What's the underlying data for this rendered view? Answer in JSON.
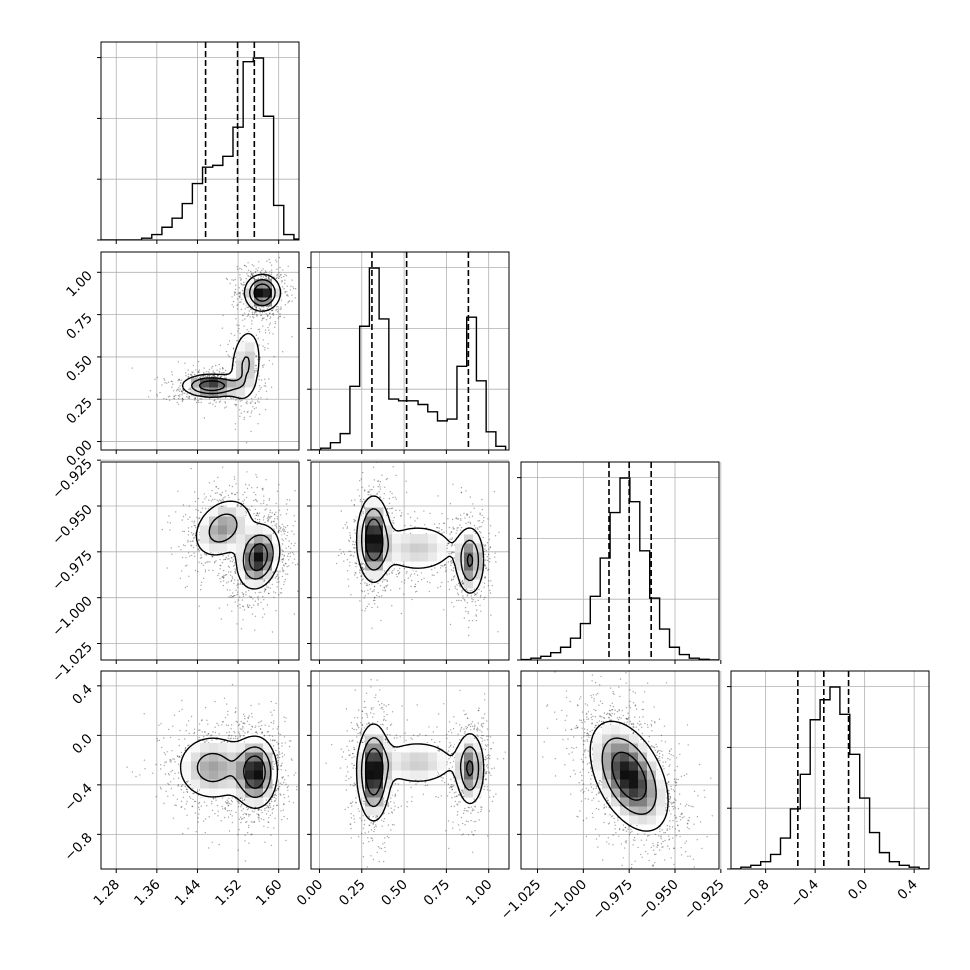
{
  "chart_data": {
    "type": "corner",
    "title": "",
    "n_params": 4,
    "params": [
      {
        "index": 0,
        "label": "",
        "range": [
          1.25,
          1.64
        ],
        "ticks": [
          1.28,
          1.36,
          1.44,
          1.52,
          1.6
        ],
        "tick_labels": [
          "1.28",
          "1.36",
          "1.44",
          "1.52",
          "1.60"
        ],
        "quantile_lines": [
          1.456,
          1.519,
          1.552
        ],
        "hist": {
          "edges": [
            1.25,
            1.27,
            1.29,
            1.31,
            1.33,
            1.35,
            1.37,
            1.39,
            1.41,
            1.43,
            1.45,
            1.47,
            1.49,
            1.51,
            1.53,
            1.55,
            1.57,
            1.59,
            1.61,
            1.63,
            1.65
          ],
          "counts": [
            0,
            0,
            0,
            0,
            0.01,
            0.03,
            0.07,
            0.12,
            0.2,
            0.31,
            0.4,
            0.41,
            0.46,
            0.62,
            0.98,
            1.0,
            0.68,
            0.19,
            0.03,
            0.005
          ]
        }
      },
      {
        "index": 1,
        "label": "",
        "range": [
          -0.05,
          1.12
        ],
        "ticks": [
          0.0,
          0.25,
          0.5,
          0.75,
          1.0
        ],
        "tick_labels": [
          "0.00",
          "0.25",
          "0.50",
          "0.75",
          "1.00"
        ],
        "quantile_lines": [
          0.31,
          0.515,
          0.88
        ],
        "hist": {
          "edges": [
            -0.05,
            0.0075,
            0.065,
            0.1225,
            0.18,
            0.2375,
            0.295,
            0.3525,
            0.41,
            0.4675,
            0.525,
            0.5825,
            0.64,
            0.6975,
            0.755,
            0.8125,
            0.87,
            0.9275,
            0.985,
            1.0425,
            1.1
          ],
          "counts": [
            0,
            0.01,
            0.04,
            0.09,
            0.35,
            0.68,
            1.0,
            0.72,
            0.28,
            0.27,
            0.27,
            0.25,
            0.21,
            0.16,
            0.17,
            0.46,
            0.73,
            0.38,
            0.1,
            0.02
          ]
        }
      },
      {
        "index": 2,
        "label": "",
        "range": [
          -1.034,
          -0.926
        ],
        "ticks": [
          -1.025,
          -1.0,
          -0.975,
          -0.95,
          -0.925
        ],
        "tick_labels": [
          "−1.025",
          "−1.000",
          "−0.975",
          "−0.950",
          "−0.925"
        ],
        "quantile_lines": [
          -0.986,
          -0.975,
          -0.963
        ],
        "hist": {
          "edges": [
            -1.034,
            -1.0286,
            -1.0232,
            -1.0178,
            -1.0124,
            -1.007,
            -1.0016,
            -0.9962,
            -0.9908,
            -0.9854,
            -0.98,
            -0.9746,
            -0.9692,
            -0.9638,
            -0.9584,
            -0.953,
            -0.9476,
            -0.9422,
            -0.9368,
            -0.9314,
            -0.926
          ],
          "counts": [
            0.002,
            0.01,
            0.02,
            0.04,
            0.07,
            0.12,
            0.2,
            0.35,
            0.56,
            0.81,
            1.0,
            0.87,
            0.6,
            0.34,
            0.17,
            0.07,
            0.03,
            0.01,
            0.004,
            0.0
          ]
        }
      },
      {
        "index": 3,
        "label": "",
        "range": [
          -1.08,
          0.52
        ],
        "ticks": [
          -0.8,
          -0.4,
          0.0,
          0.4
        ],
        "tick_labels": [
          "−0.8",
          "−0.4",
          "0.0",
          "0.4"
        ],
        "quantile_lines": [
          -0.54,
          -0.33,
          -0.13
        ],
        "hist": {
          "edges": [
            -1.08,
            -1.0,
            -0.92,
            -0.84,
            -0.76,
            -0.68,
            -0.6,
            -0.52,
            -0.44,
            -0.36,
            -0.28,
            -0.2,
            -0.12,
            -0.04,
            0.04,
            0.12,
            0.2,
            0.28,
            0.36,
            0.44,
            0.52
          ],
          "counts": [
            0,
            0.01,
            0.02,
            0.04,
            0.08,
            0.17,
            0.33,
            0.52,
            0.82,
            0.93,
            1.0,
            0.85,
            0.63,
            0.39,
            0.2,
            0.09,
            0.04,
            0.02,
            0.01,
            0
          ]
        }
      }
    ],
    "pairs": [
      {
        "x": 0,
        "y": 1,
        "modes": [
          {
            "cx": 1.468,
            "cy": 0.33,
            "sx": 0.03,
            "sy": 0.035,
            "rho": 0.0,
            "weight": 0.55
          },
          {
            "cx": 1.535,
            "cy": 0.45,
            "sx": 0.018,
            "sy": 0.13,
            "rho": 0.2,
            "weight": 0.25
          },
          {
            "cx": 1.568,
            "cy": 0.88,
            "sx": 0.018,
            "sy": 0.055,
            "rho": 0.0,
            "weight": 0.6
          }
        ]
      },
      {
        "x": 0,
        "y": 2,
        "modes": [
          {
            "cx": 1.49,
            "cy": -0.962,
            "sx": 0.032,
            "sy": 0.009,
            "rho": 0.3,
            "weight": 0.45
          },
          {
            "cx": 1.56,
            "cy": -0.978,
            "sx": 0.022,
            "sy": 0.009,
            "rho": 0.2,
            "weight": 0.75
          }
        ]
      },
      {
        "x": 0,
        "y": 3,
        "modes": [
          {
            "cx": 1.47,
            "cy": -0.26,
            "sx": 0.04,
            "sy": 0.15,
            "rho": 0.0,
            "weight": 0.45
          },
          {
            "cx": 1.555,
            "cy": -0.3,
            "sx": 0.022,
            "sy": 0.15,
            "rho": 0.0,
            "weight": 0.8
          }
        ]
      },
      {
        "x": 1,
        "y": 2,
        "modes": [
          {
            "cx": 0.32,
            "cy": -0.968,
            "sx": 0.05,
            "sy": 0.012,
            "rho": 0.0,
            "weight": 0.8
          },
          {
            "cx": 0.58,
            "cy": -0.973,
            "sx": 0.14,
            "sy": 0.008,
            "rho": 0.0,
            "weight": 0.3
          },
          {
            "cx": 0.89,
            "cy": -0.98,
            "sx": 0.045,
            "sy": 0.01,
            "rho": 0.0,
            "weight": 0.55
          }
        ]
      },
      {
        "x": 1,
        "y": 3,
        "modes": [
          {
            "cx": 0.32,
            "cy": -0.3,
            "sx": 0.05,
            "sy": 0.2,
            "rho": 0.0,
            "weight": 0.8
          },
          {
            "cx": 0.58,
            "cy": -0.22,
            "sx": 0.14,
            "sy": 0.11,
            "rho": 0.0,
            "weight": 0.3
          },
          {
            "cx": 0.89,
            "cy": -0.27,
            "sx": 0.045,
            "sy": 0.16,
            "rho": 0.0,
            "weight": 0.55
          }
        ]
      },
      {
        "x": 2,
        "y": 3,
        "modes": [
          {
            "cx": -0.975,
            "cy": -0.33,
            "sx": 0.011,
            "sy": 0.23,
            "rho": -0.45,
            "weight": 1.0
          }
        ]
      }
    ],
    "grid": true,
    "colors": {
      "line": "#000000",
      "grid": "#b0b0b0",
      "points": "#000000"
    }
  }
}
